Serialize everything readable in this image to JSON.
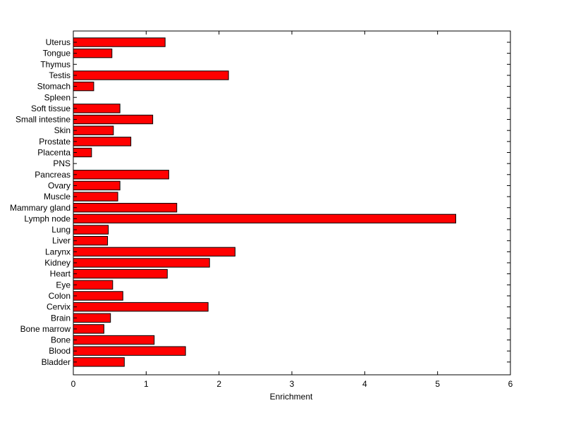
{
  "chart_data": {
    "type": "bar",
    "orientation": "horizontal",
    "title": "",
    "xlabel": "Enrichment",
    "ylabel": "",
    "xlim": [
      0,
      6
    ],
    "xticks": [
      "0",
      "1",
      "2",
      "3",
      "4",
      "5",
      "6"
    ],
    "grid": false,
    "bar_color": "#ff0000",
    "categories": [
      "Uterus",
      "Tongue",
      "Thymus",
      "Testis",
      "Stomach",
      "Spleen",
      "Soft tissue",
      "Small intestine",
      "Skin",
      "Prostate",
      "Placenta",
      "PNS",
      "Pancreas",
      "Ovary",
      "Muscle",
      "Mammary gland",
      "Lymph node",
      "Lung",
      "Liver",
      "Larynx",
      "Kidney",
      "Heart",
      "Eye",
      "Colon",
      "Cervix",
      "Brain",
      "Bone marrow",
      "Bone",
      "Blood",
      "Bladder"
    ],
    "values": [
      1.26,
      0.53,
      0.0,
      2.13,
      0.28,
      0.0,
      0.64,
      1.09,
      0.55,
      0.79,
      0.25,
      0.0,
      1.31,
      0.64,
      0.61,
      1.42,
      5.25,
      0.48,
      0.47,
      2.22,
      1.87,
      1.29,
      0.54,
      0.68,
      1.85,
      0.51,
      0.42,
      1.11,
      1.54,
      0.7
    ]
  }
}
